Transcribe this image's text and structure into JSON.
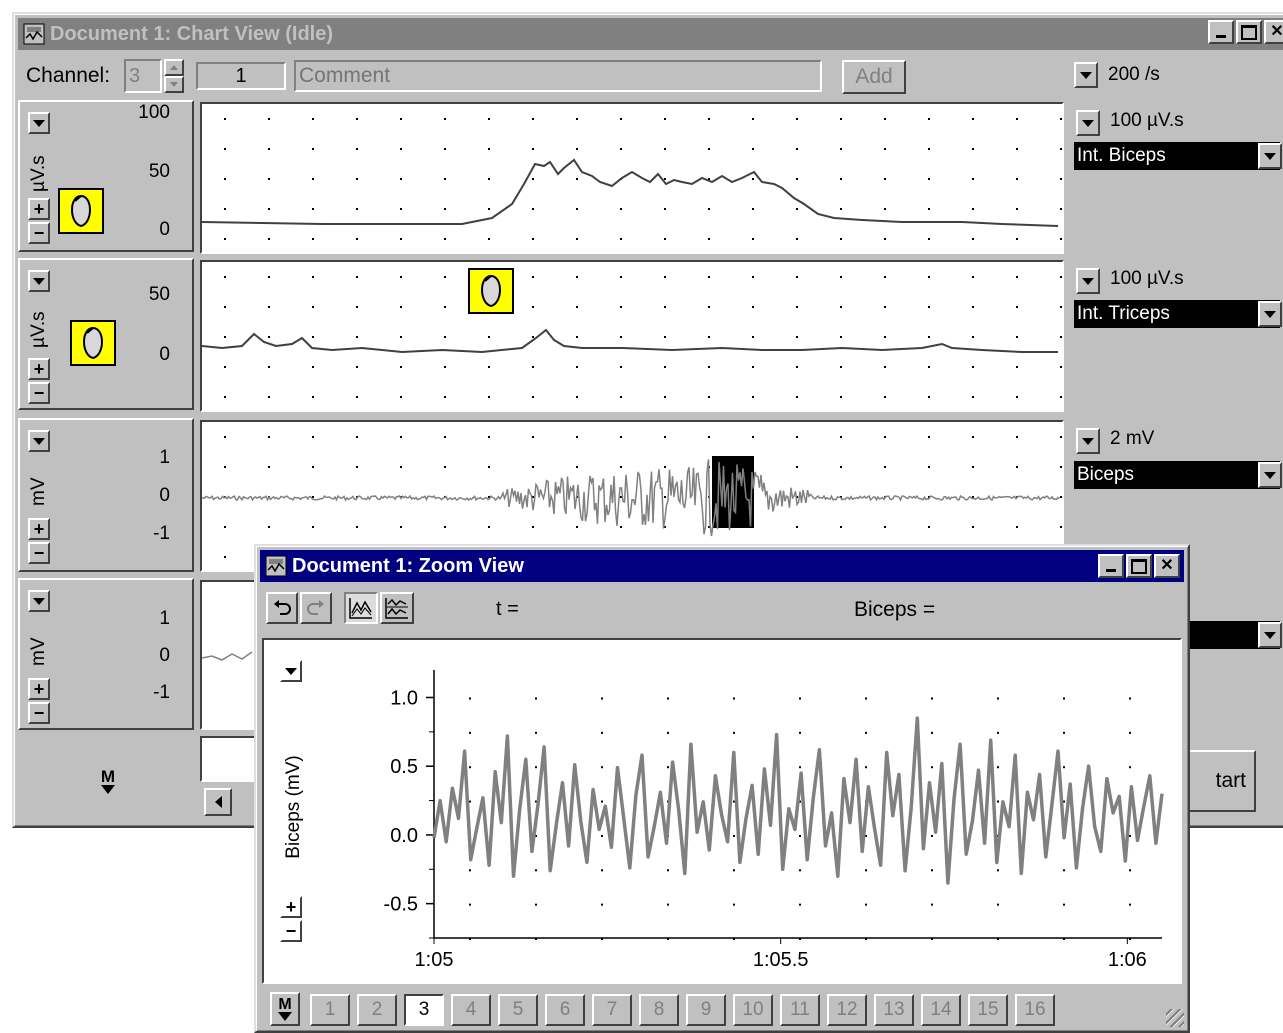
{
  "chart_window": {
    "title": "Document 1: Chart View (Idle)",
    "toolbar": {
      "channel_label": "Channel:",
      "channel_value": "3",
      "block_number": "1",
      "comment_placeholder": "Comment",
      "add_label": "Add",
      "rate": "200 /s"
    },
    "channels": [
      {
        "unit": "µV.s",
        "ticks": [
          "100",
          "50",
          "0"
        ],
        "range": "100 µV.s",
        "name": "Int. Biceps"
      },
      {
        "unit": "µV.s",
        "ticks": [
          "50",
          "0"
        ],
        "range": "100 µV.s",
        "name": "Int. Triceps"
      },
      {
        "unit": "mV",
        "ticks": [
          "1",
          "0",
          "-1"
        ],
        "range": "2 mV",
        "name": "Biceps"
      },
      {
        "unit": "mV",
        "ticks": [
          "1",
          "0",
          "-1"
        ]
      }
    ],
    "start_partial": "tart",
    "mode_label": "M"
  },
  "zoom_window": {
    "title": "Document 1: Zoom View",
    "readout_t": "t =",
    "readout_channel": "Biceps =",
    "mode_label": "M",
    "pages": [
      "1",
      "2",
      "3",
      "4",
      "5",
      "6",
      "7",
      "8",
      "9",
      "10",
      "11",
      "12",
      "13",
      "14",
      "15",
      "16"
    ],
    "selected_page": "3"
  },
  "chart_data": {
    "type": "line",
    "ylabel": "Biceps (mV)",
    "x_tick_labels": [
      "1:05",
      "1:05.5",
      "1:06"
    ],
    "x_range_seconds": [
      65.0,
      66.05
    ],
    "y_ticks": [
      "1.0",
      "0.5",
      "0.0",
      "-0.5"
    ],
    "ylim": [
      -0.75,
      1.2
    ],
    "series_color": "#808080",
    "y_values": [
      -0.02,
      0.25,
      -0.05,
      0.34,
      0.12,
      0.61,
      -0.18,
      0.05,
      0.27,
      -0.22,
      0.46,
      0.09,
      0.72,
      -0.3,
      0.18,
      0.55,
      -0.12,
      0.22,
      0.64,
      -0.26,
      0.08,
      0.38,
      -0.08,
      0.51,
      0.1,
      -0.2,
      0.33,
      0.04,
      0.21,
      -0.09,
      0.49,
      0.13,
      -0.24,
      0.29,
      0.58,
      -0.16,
      0.06,
      0.31,
      -0.06,
      0.53,
      0.18,
      -0.28,
      0.66,
      0.02,
      0.24,
      -0.11,
      0.43,
      0.15,
      -0.05,
      0.6,
      -0.2,
      0.12,
      0.36,
      -0.14,
      0.48,
      0.07,
      0.73,
      -0.25,
      0.19,
      0.04,
      0.45,
      -0.18,
      0.27,
      0.62,
      -0.08,
      0.16,
      -0.3,
      0.41,
      0.09,
      0.55,
      -0.12,
      0.35,
      0.05,
      -0.22,
      0.6,
      0.14,
      0.44,
      -0.26,
      0.2,
      0.85,
      -0.1,
      0.38,
      0.02,
      0.52,
      -0.35,
      0.26,
      0.66,
      -0.14,
      0.1,
      0.47,
      -0.06,
      0.69,
      -0.2,
      0.24,
      0.06,
      0.58,
      -0.28,
      0.31,
      0.11,
      0.44,
      -0.16,
      0.22,
      0.61,
      -0.02,
      0.37,
      -0.24,
      0.19,
      0.5,
      0.06,
      -0.12,
      0.41,
      0.16,
      0.28,
      -0.19,
      0.35,
      -0.04,
      0.2,
      0.43,
      -0.06,
      0.3
    ]
  }
}
